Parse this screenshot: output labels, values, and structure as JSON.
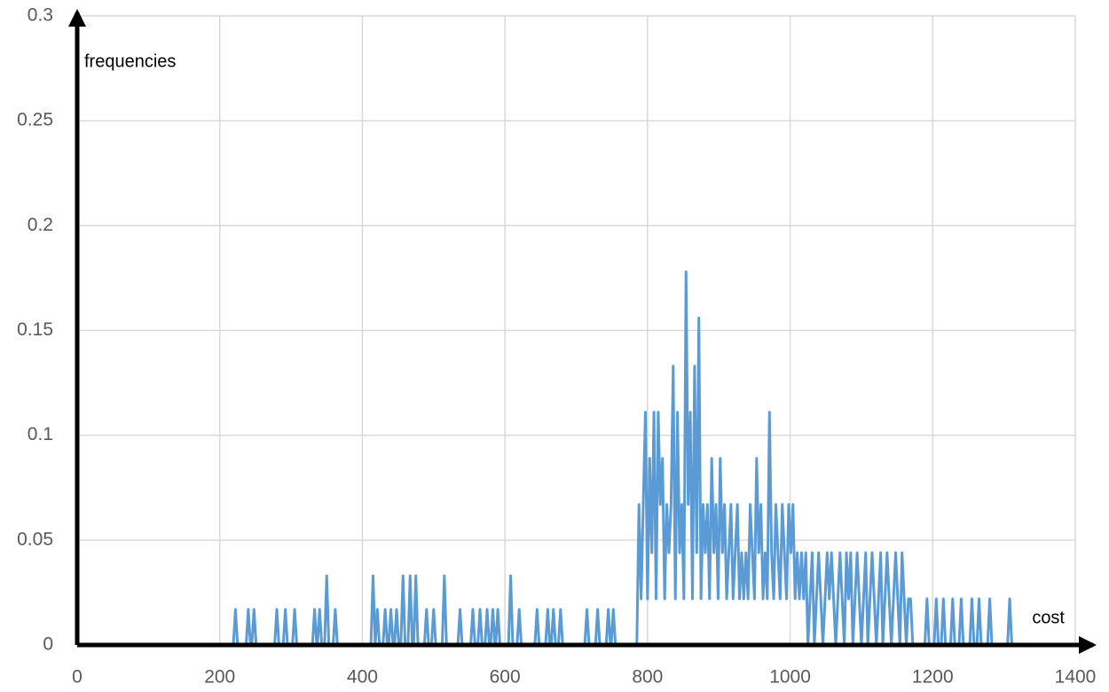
{
  "chart_data": {
    "type": "line",
    "x_label": "cost",
    "y_label": "frequencies",
    "xlim": [
      0,
      1400
    ],
    "ylim": [
      0,
      0.3
    ],
    "xticks": [
      0,
      200,
      400,
      600,
      800,
      1000,
      1200,
      1400
    ],
    "yticks": [
      0,
      0.05,
      0.1,
      0.15,
      0.2,
      0.25,
      0.3
    ],
    "grid": true,
    "color": "#5b9bd5",
    "x": [
      0,
      219,
      222,
      225,
      237,
      240,
      243,
      245,
      248,
      251,
      277,
      280,
      283,
      289,
      292,
      295,
      302,
      305,
      308,
      330,
      333,
      336,
      337,
      340,
      343,
      347,
      350,
      353,
      359,
      362,
      365,
      412,
      415,
      418,
      418,
      421,
      424,
      429,
      432,
      435,
      437,
      440,
      443,
      445,
      448,
      451,
      454,
      457,
      460,
      464,
      467,
      470,
      472,
      475,
      478,
      487,
      490,
      493,
      497,
      500,
      503,
      512,
      515,
      518,
      534,
      537,
      540,
      552,
      555,
      558,
      562,
      565,
      568,
      572,
      575,
      578,
      580,
      583,
      586,
      587,
      590,
      593,
      605,
      608,
      611,
      617,
      620,
      623,
      642,
      645,
      648,
      657,
      660,
      663,
      665,
      668,
      671,
      675,
      678,
      681,
      712,
      715,
      718,
      727,
      730,
      733,
      742,
      745,
      748,
      749,
      752,
      755,
      785,
      788,
      791,
      794,
      797,
      800,
      803,
      806,
      809,
      812,
      815,
      818,
      821,
      824,
      827,
      830,
      833,
      836,
      839,
      842,
      845,
      848,
      851,
      854,
      857,
      860,
      863,
      866,
      869,
      872,
      875,
      878,
      881,
      884,
      887,
      890,
      893,
      896,
      899,
      902,
      905,
      908,
      911,
      914,
      917,
      920,
      923,
      926,
      929,
      932,
      935,
      938,
      941,
      944,
      947,
      950,
      953,
      956,
      959,
      962,
      965,
      968,
      971,
      974,
      977,
      980,
      983,
      986,
      989,
      992,
      995,
      998,
      1001,
      1004,
      1007,
      1010,
      1013,
      1016,
      1019,
      1022,
      1025,
      1028,
      1031,
      1034,
      1037,
      1040,
      1043,
      1046,
      1049,
      1052,
      1055,
      1058,
      1061,
      1064,
      1067,
      1070,
      1073,
      1076,
      1079,
      1082,
      1085,
      1088,
      1091,
      1094,
      1097,
      1100,
      1103,
      1106,
      1109,
      1112,
      1115,
      1118,
      1121,
      1124,
      1127,
      1130,
      1133,
      1136,
      1139,
      1142,
      1145,
      1148,
      1151,
      1154,
      1157,
      1160,
      1163,
      1166,
      1169,
      1172,
      1189,
      1192,
      1195,
      1202,
      1205,
      1208,
      1212,
      1215,
      1218,
      1225,
      1228,
      1231,
      1237,
      1240,
      1243,
      1252,
      1255,
      1258,
      1262,
      1265,
      1268,
      1277,
      1280,
      1283,
      1305,
      1308,
      1311
    ],
    "values": [
      0,
      0,
      0.017,
      0,
      0,
      0.017,
      0,
      0,
      0.017,
      0,
      0,
      0.017,
      0,
      0,
      0.017,
      0,
      0,
      0.017,
      0,
      0,
      0.017,
      0,
      0,
      0.017,
      0,
      0,
      0.033,
      0,
      0,
      0.017,
      0,
      0,
      0.033,
      0,
      0,
      0.017,
      0,
      0,
      0.017,
      0,
      0,
      0.017,
      0,
      0,
      0.017,
      0,
      0,
      0.033,
      0,
      0,
      0.033,
      0,
      0,
      0.033,
      0,
      0,
      0.017,
      0,
      0,
      0.017,
      0,
      0,
      0.033,
      0,
      0,
      0.017,
      0,
      0,
      0.017,
      0,
      0,
      0.017,
      0,
      0,
      0.017,
      0,
      0,
      0.017,
      0,
      0,
      0.017,
      0,
      0,
      0.033,
      0,
      0,
      0.017,
      0,
      0,
      0.017,
      0,
      0,
      0.017,
      0,
      0,
      0.017,
      0,
      0,
      0.017,
      0,
      0,
      0.017,
      0,
      0,
      0.017,
      0,
      0,
      0.017,
      0,
      0,
      0.017,
      0,
      0,
      0.067,
      0.022,
      0.067,
      0.111,
      0.022,
      0.089,
      0.044,
      0.111,
      0.022,
      0.111,
      0.067,
      0.089,
      0.022,
      0.067,
      0.044,
      0.067,
      0.133,
      0.022,
      0.111,
      0.044,
      0.067,
      0.022,
      0.178,
      0.067,
      0.111,
      0.022,
      0.133,
      0.044,
      0.156,
      0.022,
      0.067,
      0.044,
      0.067,
      0.022,
      0.089,
      0.044,
      0.067,
      0.022,
      0.089,
      0.044,
      0.067,
      0.022,
      0.044,
      0.067,
      0.022,
      0.044,
      0.067,
      0.022,
      0.044,
      0.022,
      0.044,
      0.022,
      0.067,
      0.044,
      0.022,
      0.089,
      0.044,
      0.067,
      0.022,
      0.044,
      0.022,
      0.111,
      0.044,
      0.022,
      0.067,
      0.044,
      0.022,
      0.067,
      0.044,
      0.022,
      0.067,
      0.044,
      0.067,
      0.022,
      0.044,
      0.022,
      0.044,
      0.022,
      0.044,
      0,
      0.022,
      0.044,
      0,
      0.022,
      0.044,
      0.022,
      0,
      0.022,
      0.044,
      0.022,
      0.044,
      0.022,
      0,
      0.022,
      0.044,
      0.022,
      0,
      0.044,
      0.022,
      0.044,
      0,
      0.022,
      0.044,
      0.022,
      0,
      0.022,
      0.044,
      0,
      0.022,
      0.044,
      0.022,
      0,
      0.022,
      0.044,
      0,
      0.022,
      0.044,
      0.022,
      0,
      0.022,
      0.044,
      0.022,
      0,
      0.044,
      0.022,
      0,
      0.022,
      0.022,
      0,
      0,
      0.022,
      0,
      0,
      0.022,
      0,
      0,
      0.022,
      0,
      0,
      0.022,
      0,
      0,
      0.022,
      0,
      0,
      0.022,
      0,
      0,
      0.022,
      0,
      0,
      0.022,
      0,
      0,
      0.022,
      0
    ]
  }
}
